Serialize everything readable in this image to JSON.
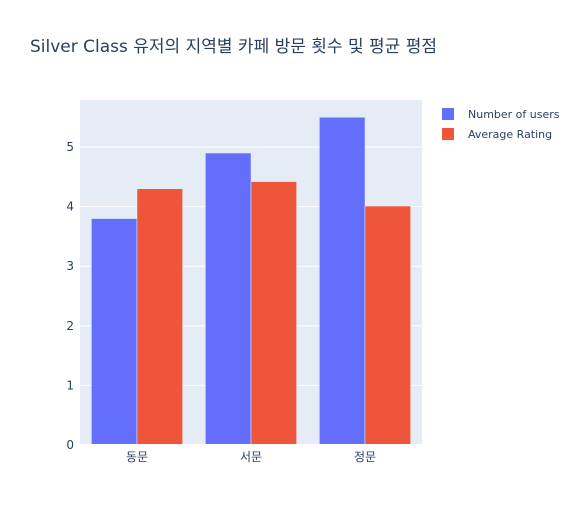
{
  "chart_data": {
    "type": "bar",
    "title": "Silver Class 유저의 지역별 카페 방문 횟수 및 평균 평점",
    "xlabel": "",
    "ylabel": "",
    "categories": [
      "동문",
      "서문",
      "정문"
    ],
    "series": [
      {
        "name": "Number of users",
        "values": [
          3.8,
          4.9,
          5.5
        ],
        "color": "#636efa"
      },
      {
        "name": "Average Rating",
        "values": [
          4.3,
          4.42,
          4.01
        ],
        "color": "#ef553b"
      }
    ],
    "ylim": [
      0,
      5.79
    ],
    "yticks": [
      0,
      1,
      2,
      3,
      4,
      5
    ],
    "grid": true,
    "legend_position": "top-right",
    "plot_background": "#e5ecf6"
  }
}
